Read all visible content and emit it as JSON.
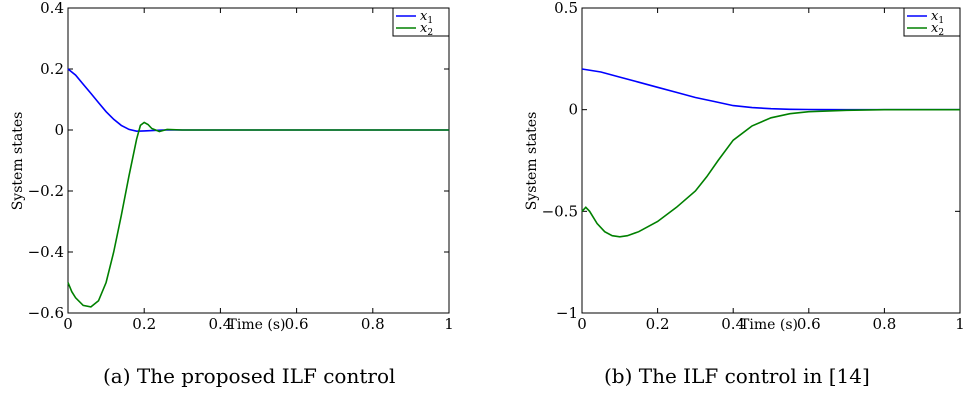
{
  "chart_data": [
    {
      "type": "line",
      "caption": "(a) The proposed ILF control",
      "xlabel": "Time (s)",
      "ylabel": "System states",
      "xlim": [
        0,
        1
      ],
      "ylim": [
        -0.6,
        0.4
      ],
      "xticks": [
        0,
        0.2,
        0.4,
        0.6,
        0.8,
        1
      ],
      "xtick_labels": [
        "0",
        "0.2",
        "0.4",
        "0.6",
        "0.8",
        "1"
      ],
      "yticks": [
        -0.6,
        -0.4,
        -0.2,
        0,
        0.2,
        0.4
      ],
      "ytick_labels": [
        "−0.6",
        "−0.4",
        "−0.2",
        "0",
        "0.2",
        "0.4"
      ],
      "grid": false,
      "legend_position": "top-right",
      "series": [
        {
          "name": "x1",
          "color": "#0000ff",
          "x": [
            0,
            0.02,
            0.04,
            0.06,
            0.08,
            0.1,
            0.12,
            0.14,
            0.16,
            0.18,
            0.2,
            0.22,
            0.25,
            0.3,
            0.4,
            1
          ],
          "y": [
            0.2,
            0.18,
            0.15,
            0.12,
            0.09,
            0.06,
            0.035,
            0.015,
            0.002,
            -0.004,
            -0.003,
            -0.002,
            0,
            0,
            0,
            0
          ]
        },
        {
          "name": "x2",
          "color": "#008000",
          "x": [
            0,
            0.01,
            0.02,
            0.04,
            0.06,
            0.08,
            0.1,
            0.12,
            0.14,
            0.16,
            0.18,
            0.19,
            0.2,
            0.21,
            0.22,
            0.24,
            0.26,
            0.3,
            0.4,
            1
          ],
          "y": [
            -0.5,
            -0.53,
            -0.55,
            -0.575,
            -0.58,
            -0.56,
            -0.5,
            -0.4,
            -0.28,
            -0.15,
            -0.03,
            0.015,
            0.025,
            0.018,
            0.005,
            -0.005,
            0.002,
            0,
            0,
            0
          ]
        }
      ]
    },
    {
      "type": "line",
      "caption": "(b) The ILF control in [14]",
      "xlabel": "Time (s)",
      "ylabel": "System states",
      "xlim": [
        0,
        1
      ],
      "ylim": [
        -1,
        0.5
      ],
      "xticks": [
        0,
        0.2,
        0.4,
        0.6,
        0.8,
        1
      ],
      "xtick_labels": [
        "0",
        "0.2",
        "0.4",
        "0.6",
        "0.8",
        "1"
      ],
      "yticks": [
        -1,
        -0.5,
        0,
        0.5
      ],
      "ytick_labels": [
        "−1",
        "−0.5",
        "0",
        "0.5"
      ],
      "grid": false,
      "legend_position": "top-right",
      "series": [
        {
          "name": "x1",
          "color": "#0000ff",
          "x": [
            0,
            0.05,
            0.1,
            0.15,
            0.2,
            0.25,
            0.3,
            0.35,
            0.4,
            0.45,
            0.5,
            0.55,
            0.6,
            0.7,
            0.8,
            1
          ],
          "y": [
            0.2,
            0.185,
            0.16,
            0.135,
            0.11,
            0.085,
            0.06,
            0.04,
            0.02,
            0.01,
            0.005,
            0.002,
            0.001,
            0,
            0,
            0
          ]
        },
        {
          "name": "x2",
          "color": "#008000",
          "x": [
            0,
            0.01,
            0.02,
            0.04,
            0.06,
            0.08,
            0.1,
            0.12,
            0.15,
            0.2,
            0.25,
            0.3,
            0.33,
            0.36,
            0.4,
            0.45,
            0.5,
            0.55,
            0.6,
            0.7,
            0.8,
            1
          ],
          "y": [
            -0.5,
            -0.48,
            -0.5,
            -0.56,
            -0.6,
            -0.62,
            -0.625,
            -0.62,
            -0.6,
            -0.55,
            -0.48,
            -0.4,
            -0.33,
            -0.25,
            -0.15,
            -0.08,
            -0.04,
            -0.02,
            -0.01,
            -0.003,
            0,
            0
          ]
        }
      ]
    }
  ]
}
